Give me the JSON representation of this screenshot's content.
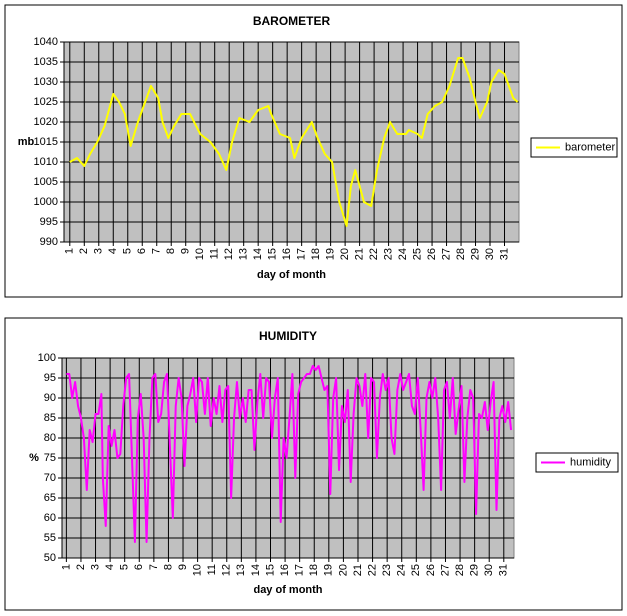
{
  "chart_data": [
    {
      "type": "line",
      "title": "BAROMETER",
      "x_label": "day of month",
      "y_label": "mb",
      "x": [
        1,
        1.5,
        2,
        2.4,
        2.9,
        3.4,
        4,
        4.4,
        4.8,
        5.2,
        5.7,
        6.2,
        6.6,
        7.1,
        7.4,
        7.8,
        8.2,
        8.7,
        9.3,
        10,
        10.7,
        11.3,
        11.8,
        12.2,
        12.7,
        13.4,
        14,
        14.7,
        14.9,
        15.5,
        16.2,
        16.5,
        17,
        17.7,
        18.1,
        18.6,
        19.1,
        19.6,
        20.1,
        20.4,
        20.7,
        21.3,
        21.8,
        22.2,
        22.7,
        23.1,
        23.6,
        24.2,
        24.4,
        25,
        25.3,
        25.7,
        26.2,
        26.7,
        27.2,
        27.8,
        28.1,
        28.6,
        29,
        29.3,
        29.8,
        30.1,
        30.6,
        31,
        31.3,
        31.6,
        31.9
      ],
      "series": [
        {
          "name": "barometer",
          "color": "#ffff00",
          "values": [
            1010,
            1011,
            1009,
            1012,
            1015,
            1019,
            1027,
            1025,
            1022,
            1014,
            1020,
            1025,
            1029,
            1026,
            1020,
            1016,
            1019,
            1022,
            1022,
            1017,
            1015,
            1012,
            1008,
            1015,
            1021,
            1020,
            1023,
            1024,
            1022,
            1017,
            1016,
            1011,
            1016,
            1020,
            1016,
            1012,
            1010,
            1000,
            994,
            1004,
            1008,
            1000,
            999,
            1008,
            1016,
            1020,
            1017,
            1017,
            1018,
            1017,
            1016,
            1022,
            1024,
            1025,
            1029,
            1036,
            1036,
            1031,
            1025,
            1021,
            1025,
            1030,
            1033,
            1032,
            1029,
            1026,
            1025
          ]
        }
      ],
      "xlim": [
        0.6,
        32
      ],
      "ylim": [
        990,
        1040
      ],
      "xticks": [
        1,
        2,
        3,
        4,
        5,
        6,
        7,
        8,
        9,
        10,
        11,
        12,
        13,
        14,
        15,
        16,
        17,
        18,
        19,
        20,
        21,
        22,
        23,
        24,
        25,
        26,
        27,
        28,
        29,
        30,
        31
      ],
      "yticks": [
        990,
        995,
        1000,
        1005,
        1010,
        1015,
        1020,
        1025,
        1030,
        1035,
        1040
      ],
      "grid": true,
      "legend": "right"
    },
    {
      "type": "line",
      "title": "HUMIDITY",
      "x_label": "day of month",
      "y_label": "%",
      "x": [
        1,
        1.2,
        1.4,
        1.6,
        1.8,
        2,
        2.2,
        2.4,
        2.6,
        2.8,
        3,
        3.2,
        3.4,
        3.5,
        3.7,
        3.9,
        4.1,
        4.3,
        4.5,
        4.7,
        4.9,
        5.1,
        5.3,
        5.5,
        5.7,
        5.9,
        6.1,
        6.3,
        6.5,
        6.7,
        6.9,
        7.1,
        7.3,
        7.5,
        7.7,
        7.9,
        8.1,
        8.3,
        8.5,
        8.7,
        8.9,
        9.1,
        9.3,
        9.5,
        9.7,
        9.9,
        10.1,
        10.3,
        10.5,
        10.7,
        10.9,
        11.1,
        11.3,
        11.5,
        11.7,
        11.9,
        12.1,
        12.3,
        12.5,
        12.7,
        12.9,
        13.1,
        13.3,
        13.5,
        13.7,
        13.9,
        14.1,
        14.3,
        14.5,
        14.7,
        14.9,
        15.1,
        15.3,
        15.5,
        15.7,
        15.9,
        16.1,
        16.3,
        16.5,
        16.7,
        16.9,
        17.1,
        17.3,
        17.5,
        17.7,
        17.9,
        18.1,
        18.3,
        18.5,
        18.7,
        18.9,
        19.1,
        19.3,
        19.5,
        19.7,
        19.9,
        20.1,
        20.3,
        20.5,
        20.7,
        20.9,
        21.1,
        21.3,
        21.5,
        21.7,
        21.9,
        22.1,
        22.3,
        22.5,
        22.7,
        22.9,
        23.1,
        23.3,
        23.5,
        23.7,
        23.9,
        24.1,
        24.3,
        24.5,
        24.7,
        24.9,
        25.1,
        25.3,
        25.5,
        25.7,
        25.9,
        26.1,
        26.3,
        26.5,
        26.7,
        26.9,
        27.1,
        27.3,
        27.5,
        27.7,
        27.9,
        28.1,
        28.3,
        28.5,
        28.7,
        28.9,
        29.1,
        29.3,
        29.5,
        29.7,
        29.9,
        30.1,
        30.3,
        30.5,
        30.7,
        30.9,
        31.1,
        31.3,
        31.5
      ],
      "series": [
        {
          "name": "humidity",
          "color": "#ff00ff",
          "values": [
            96,
            96,
            90,
            94,
            88,
            85,
            80,
            67,
            82,
            79,
            86,
            86,
            91,
            70,
            58,
            83,
            78,
            82,
            75,
            76,
            88,
            95,
            96,
            75,
            54,
            85,
            91,
            80,
            54,
            80,
            95,
            96,
            84,
            86,
            94,
            96,
            78,
            60,
            88,
            95,
            90,
            73,
            88,
            91,
            95,
            84,
            95,
            94,
            86,
            95,
            83,
            90,
            86,
            93,
            84,
            92,
            93,
            65,
            85,
            94,
            85,
            90,
            84,
            92,
            92,
            77,
            89,
            96,
            85,
            95,
            94,
            80,
            90,
            95,
            59,
            80,
            75,
            85,
            96,
            70,
            91,
            94,
            95,
            96,
            96,
            98,
            97,
            98,
            95,
            92,
            93,
            66,
            90,
            95,
            72,
            88,
            84,
            92,
            69,
            86,
            95,
            93,
            88,
            96,
            80,
            95,
            94,
            75,
            90,
            96,
            92,
            95,
            80,
            76,
            92,
            96,
            92,
            94,
            96,
            88,
            86,
            95,
            82,
            67,
            90,
            94,
            90,
            95,
            85,
            67,
            92,
            94,
            85,
            95,
            81,
            87,
            93,
            69,
            85,
            92,
            90,
            61,
            86,
            85,
            89,
            82,
            89,
            94,
            62,
            85,
            88,
            84,
            89,
            82
          ]
        }
      ],
      "xlim": [
        0.7,
        31.7
      ],
      "ylim": [
        50,
        100
      ],
      "xticks": [
        1,
        2,
        3,
        4,
        5,
        6,
        7,
        8,
        9,
        10,
        11,
        12,
        13,
        14,
        15,
        16,
        17,
        18,
        19,
        20,
        21,
        22,
        23,
        24,
        25,
        26,
        27,
        28,
        29,
        30,
        31
      ],
      "yticks": [
        50,
        55,
        60,
        65,
        70,
        75,
        80,
        85,
        90,
        95,
        100
      ],
      "grid": true,
      "legend": "right"
    }
  ]
}
